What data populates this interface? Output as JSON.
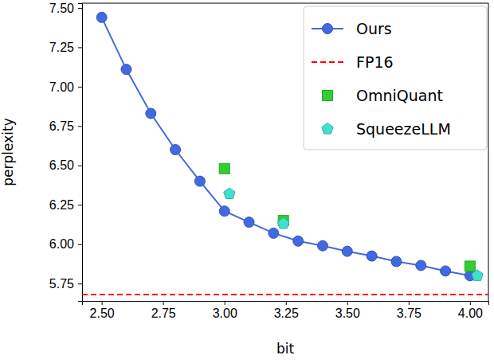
{
  "chart_data": {
    "type": "line",
    "xlabel": "bit",
    "ylabel": "perplexity",
    "xlim": [
      2.42,
      4.075
    ],
    "ylim": [
      5.64,
      7.53
    ],
    "xticks": [
      {
        "value": 2.5,
        "label": "2.50"
      },
      {
        "value": 2.75,
        "label": "2.75"
      },
      {
        "value": 3.0,
        "label": "3.00"
      },
      {
        "value": 3.25,
        "label": "3.25"
      },
      {
        "value": 3.5,
        "label": "3.50"
      },
      {
        "value": 3.75,
        "label": "3.75"
      },
      {
        "value": 4.0,
        "label": "4.00"
      }
    ],
    "yticks": [
      5.75,
      {
        "value": 6.0,
        "label": "6.00"
      },
      6.25,
      {
        "value": 6.5,
        "label": "6.50"
      },
      6.75,
      {
        "value": 7.0,
        "label": "7.00"
      },
      7.25,
      {
        "value": 7.5,
        "label": "7.50"
      }
    ],
    "grid": false,
    "legend": "upper right",
    "series": [
      {
        "name": "Ours",
        "type": "line",
        "marker": "circle",
        "line_style": "solid",
        "color": "#4169e1",
        "x": [
          2.5,
          2.6,
          2.7,
          2.8,
          2.9,
          3.0,
          3.1,
          3.2,
          3.3,
          3.4,
          3.5,
          3.6,
          3.7,
          3.8,
          3.9,
          4.0
        ],
        "values": [
          7.44,
          7.11,
          6.83,
          6.6,
          6.4,
          6.21,
          6.14,
          6.07,
          6.02,
          5.99,
          5.955,
          5.925,
          5.89,
          5.865,
          5.83,
          5.8
        ]
      },
      {
        "name": "FP16",
        "type": "hline",
        "line_style": "dashed",
        "color": "#ff0000",
        "values": [
          5.68
        ]
      },
      {
        "name": "OmniQuant",
        "type": "scatter",
        "marker": "square",
        "color": "#32cd32",
        "x": [
          3.0,
          3.24,
          4.0
        ],
        "values": [
          6.48,
          6.15,
          5.86
        ]
      },
      {
        "name": "SqueezeLLM",
        "type": "scatter",
        "marker": "pentagon",
        "color": "#40e0d0",
        "x": [
          3.02,
          3.24,
          4.03
        ],
        "values": [
          6.32,
          6.13,
          5.8
        ]
      }
    ]
  }
}
